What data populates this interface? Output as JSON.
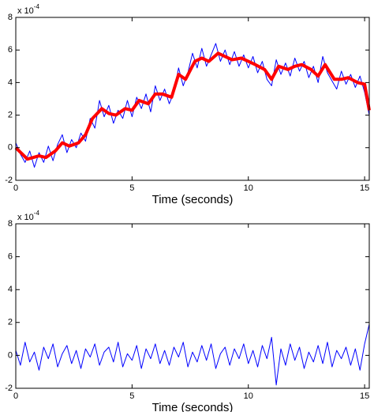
{
  "chart_data": [
    {
      "type": "line",
      "x_label": "Time (seconds)",
      "y_multiplier": {
        "base": "x 10",
        "exponent": "-4"
      },
      "xlim": [
        0,
        15.2
      ],
      "ylim": [
        -2,
        8
      ],
      "xticks": [
        0,
        5,
        10,
        15
      ],
      "yticks": [
        -2,
        0,
        2,
        4,
        6,
        8
      ],
      "series": [
        {
          "color": "#0000ff",
          "width": 1,
          "x": [
            0,
            0.2,
            0.4,
            0.6,
            0.8,
            1.0,
            1.2,
            1.4,
            1.6,
            1.8,
            2.0,
            2.2,
            2.4,
            2.6,
            2.8,
            3.0,
            3.2,
            3.4,
            3.6,
            3.8,
            4.0,
            4.2,
            4.4,
            4.6,
            4.8,
            5.0,
            5.2,
            5.4,
            5.6,
            5.8,
            6.0,
            6.2,
            6.4,
            6.6,
            6.8,
            7.0,
            7.2,
            7.4,
            7.6,
            7.8,
            8.0,
            8.2,
            8.4,
            8.6,
            8.8,
            9.0,
            9.2,
            9.4,
            9.6,
            9.8,
            10.0,
            10.2,
            10.4,
            10.6,
            10.8,
            11.0,
            11.2,
            11.4,
            11.6,
            11.8,
            12.0,
            12.2,
            12.4,
            12.6,
            12.8,
            13.0,
            13.2,
            13.4,
            13.6,
            13.8,
            14.0,
            14.2,
            14.4,
            14.6,
            14.8,
            15.0,
            15.2
          ],
          "values": [
            0.3,
            -0.4,
            -0.9,
            -0.2,
            -1.2,
            -0.3,
            -0.9,
            0.1,
            -0.8,
            0.2,
            0.8,
            -0.3,
            0.5,
            0.0,
            0.9,
            0.4,
            1.8,
            1.2,
            2.9,
            1.9,
            2.6,
            1.5,
            2.3,
            1.8,
            2.9,
            1.9,
            3.1,
            2.4,
            3.3,
            2.2,
            3.8,
            2.9,
            3.6,
            2.7,
            3.4,
            4.9,
            3.8,
            4.6,
            5.8,
            4.9,
            6.1,
            5.0,
            5.7,
            6.4,
            5.3,
            6.0,
            5.1,
            5.9,
            5.0,
            5.7,
            4.9,
            5.6,
            4.6,
            5.3,
            4.2,
            3.8,
            5.4,
            4.5,
            5.2,
            4.4,
            5.5,
            4.7,
            5.3,
            4.3,
            5.0,
            4.0,
            5.6,
            4.6,
            4.1,
            3.6,
            4.7,
            3.9,
            4.5,
            3.7,
            4.4,
            3.4,
            2.0
          ]
        },
        {
          "color": "#ff0000",
          "width": 4,
          "x": [
            0,
            0.5,
            1,
            1.3,
            1.7,
            2,
            2.3,
            2.7,
            3,
            3.3,
            3.7,
            4,
            4.3,
            4.7,
            5,
            5.3,
            5.7,
            6,
            6.3,
            6.7,
            7,
            7.3,
            7.7,
            8,
            8.3,
            8.7,
            9,
            9.3,
            9.7,
            10,
            10.3,
            10.7,
            11,
            11.3,
            11.7,
            12,
            12.3,
            12.7,
            13,
            13.3,
            13.7,
            14,
            14.3,
            14.7,
            15,
            15.2
          ],
          "values": [
            0,
            -0.7,
            -0.5,
            -0.6,
            -0.2,
            0.3,
            0.1,
            0.3,
            0.8,
            1.8,
            2.4,
            2.1,
            2.0,
            2.4,
            2.3,
            2.9,
            2.7,
            3.3,
            3.3,
            3.1,
            4.5,
            4.2,
            5.3,
            5.5,
            5.3,
            5.8,
            5.6,
            5.4,
            5.5,
            5.3,
            5.1,
            4.8,
            4.2,
            5.0,
            4.8,
            5.0,
            5.1,
            4.8,
            4.4,
            5.1,
            4.2,
            4.2,
            4.3,
            4.0,
            3.9,
            2.3
          ]
        }
      ]
    },
    {
      "type": "line",
      "x_label": "Time (seconds)",
      "y_multiplier": {
        "base": "x 10",
        "exponent": "-4"
      },
      "xlim": [
        0,
        15.2
      ],
      "ylim": [
        -2,
        8
      ],
      "xticks": [
        0,
        5,
        10,
        15
      ],
      "yticks": [
        -2,
        0,
        2,
        4,
        6,
        8
      ],
      "series": [
        {
          "color": "#0000ff",
          "width": 1,
          "x": [
            0,
            0.2,
            0.4,
            0.6,
            0.8,
            1.0,
            1.2,
            1.4,
            1.6,
            1.8,
            2.0,
            2.2,
            2.4,
            2.6,
            2.8,
            3.0,
            3.2,
            3.4,
            3.6,
            3.8,
            4.0,
            4.2,
            4.4,
            4.6,
            4.8,
            5.0,
            5.2,
            5.4,
            5.6,
            5.8,
            6.0,
            6.2,
            6.4,
            6.6,
            6.8,
            7.0,
            7.2,
            7.4,
            7.6,
            7.8,
            8.0,
            8.2,
            8.4,
            8.6,
            8.8,
            9.0,
            9.2,
            9.4,
            9.6,
            9.8,
            10.0,
            10.2,
            10.4,
            10.6,
            10.8,
            11.0,
            11.2,
            11.4,
            11.6,
            11.8,
            12.0,
            12.2,
            12.4,
            12.6,
            12.8,
            13.0,
            13.2,
            13.4,
            13.6,
            13.8,
            14.0,
            14.2,
            14.4,
            14.6,
            14.8,
            15.0,
            15.2
          ],
          "values": [
            0.3,
            -0.6,
            0.8,
            -0.4,
            0.2,
            -0.9,
            0.5,
            -0.2,
            0.7,
            -0.7,
            0.1,
            0.6,
            -0.5,
            0.3,
            -0.8,
            0.4,
            -0.1,
            0.7,
            -0.6,
            0.2,
            0.5,
            -0.4,
            0.8,
            -0.7,
            0.1,
            -0.3,
            0.6,
            -0.8,
            0.4,
            -0.2,
            0.7,
            -0.5,
            0.3,
            -0.6,
            0.5,
            -0.1,
            0.8,
            -0.7,
            0.2,
            -0.4,
            0.6,
            -0.3,
            0.7,
            -0.8,
            0.1,
            0.5,
            -0.6,
            0.4,
            -0.2,
            0.7,
            -0.5,
            0.3,
            -0.7,
            0.6,
            -0.2,
            1.1,
            -1.8,
            0.4,
            -0.6,
            0.7,
            -0.3,
            0.5,
            -0.8,
            0.2,
            -0.4,
            0.6,
            -0.5,
            0.8,
            -0.7,
            0.3,
            -0.2,
            0.5,
            -0.6,
            0.4,
            -0.9,
            0.7,
            1.9
          ]
        }
      ]
    }
  ]
}
